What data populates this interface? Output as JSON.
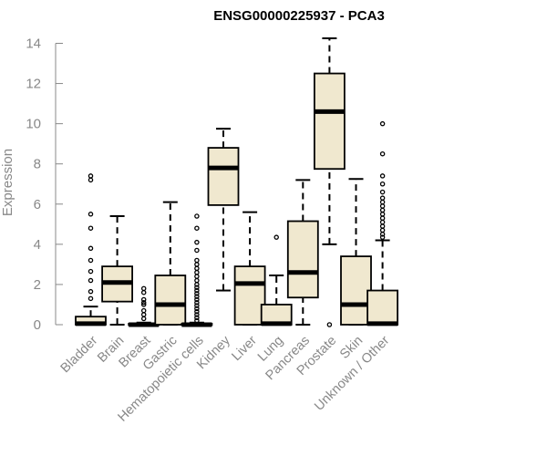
{
  "chart_data": {
    "type": "boxplot",
    "title": "ENSG00000225937 - PCA3",
    "xlabel": "",
    "ylabel": "Expression",
    "ylim": [
      0,
      14.6
    ],
    "yticks": [
      0,
      2,
      4,
      6,
      8,
      10,
      12,
      14
    ],
    "ytick_labels": [
      "0",
      "2",
      "4",
      "6",
      "8",
      "10",
      "12",
      "14"
    ],
    "box_fill": "#f0e8cf",
    "box_stroke": "#000000",
    "axis_color": "#888888",
    "categories": [
      "Bladder",
      "Brain",
      "Breast",
      "Gastric",
      "Hematopoietic cells",
      "Kidney",
      "Liver",
      "Lung",
      "Pancreas",
      "Prostate",
      "Skin",
      "Unknown / Other"
    ],
    "boxes": [
      {
        "category": "Bladder",
        "whisker_low": 0,
        "q1": 0,
        "median": 0.05,
        "q3": 0.4,
        "whisker_high": 0.9,
        "outliers": [
          1.3,
          1.65,
          2.2,
          2.65,
          3.2,
          3.8,
          4.8,
          5.5,
          7.2,
          7.4
        ]
      },
      {
        "category": "Brain",
        "whisker_low": 0,
        "q1": 1.15,
        "median": 2.1,
        "q3": 2.9,
        "whisker_high": 5.4,
        "outliers": []
      },
      {
        "category": "Breast",
        "whisker_low": 0,
        "q1": 0,
        "median": 0,
        "q3": 0.05,
        "whisker_high": 0.1,
        "outliers": [
          0.3,
          0.5,
          0.7,
          1.0,
          1.1,
          1.25,
          1.6,
          1.8
        ]
      },
      {
        "category": "Gastric",
        "whisker_low": 0,
        "q1": 0,
        "median": 1.0,
        "q3": 2.45,
        "whisker_high": 6.1,
        "outliers": []
      },
      {
        "category": "Hematopoietic cells",
        "whisker_low": 0,
        "q1": 0,
        "median": 0,
        "q3": 0.05,
        "whisker_high": 0.1,
        "outliers": [
          0.2,
          0.35,
          0.5,
          0.65,
          0.8,
          0.95,
          1.1,
          1.25,
          1.4,
          1.55,
          1.7,
          1.85,
          2.0,
          2.2,
          2.4,
          2.6,
          2.8,
          3.0,
          3.2,
          3.7,
          4.1,
          4.8,
          5.4
        ]
      },
      {
        "category": "Kidney",
        "whisker_low": 1.7,
        "q1": 5.95,
        "median": 7.8,
        "q3": 8.8,
        "whisker_high": 9.75,
        "outliers": []
      },
      {
        "category": "Liver",
        "whisker_low": 0,
        "q1": 0,
        "median": 2.05,
        "q3": 2.9,
        "whisker_high": 5.6,
        "outliers": []
      },
      {
        "category": "Lung",
        "whisker_low": 0,
        "q1": 0,
        "median": 0.05,
        "q3": 1.0,
        "whisker_high": 2.45,
        "outliers": [
          4.35
        ]
      },
      {
        "category": "Pancreas",
        "whisker_low": 0,
        "q1": 1.35,
        "median": 2.6,
        "q3": 5.15,
        "whisker_high": 7.2,
        "outliers": []
      },
      {
        "category": "Prostate",
        "whisker_low": 4.0,
        "q1": 7.75,
        "median": 10.6,
        "q3": 12.5,
        "whisker_high": 14.25,
        "outliers": [
          0
        ]
      },
      {
        "category": "Skin",
        "whisker_low": 0,
        "q1": 0,
        "median": 1.0,
        "q3": 3.4,
        "whisker_high": 7.25,
        "outliers": []
      },
      {
        "category": "Unknown / Other",
        "whisker_low": 0,
        "q1": 0,
        "median": 0.05,
        "q3": 1.7,
        "whisker_high": 4.2,
        "outliers": [
          4.35,
          4.5,
          4.7,
          4.9,
          5.1,
          5.3,
          5.5,
          5.7,
          5.9,
          6.1,
          6.3,
          6.6,
          7.0,
          7.4,
          8.5,
          10.0
        ]
      }
    ]
  }
}
